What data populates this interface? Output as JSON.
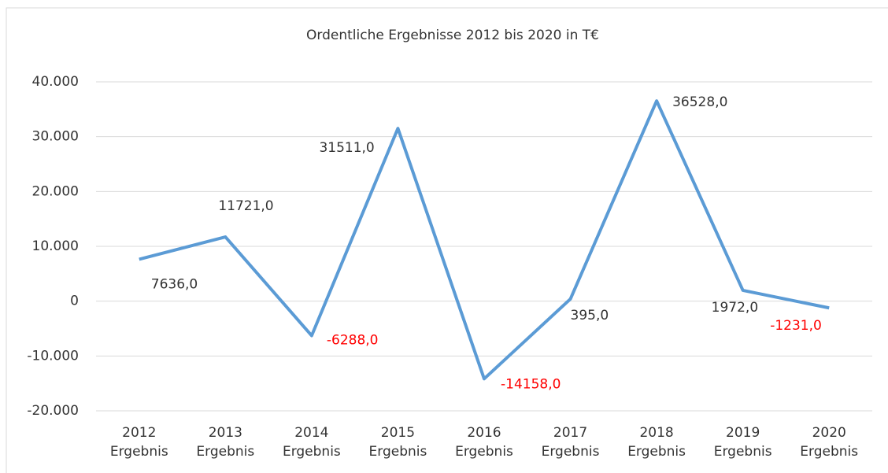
{
  "chart_data": {
    "type": "line",
    "title": "Ordentliche Ergebnisse 2012 bis 2020 in T€",
    "categories": [
      "2012 Ergebnis",
      "2013 Ergebnis",
      "2014 Ergebnis",
      "2015 Ergebnis",
      "2016 Ergebnis",
      "2017 Ergebnis",
      "2018 Ergebnis",
      "2019 Ergebnis",
      "2020 Ergebnis"
    ],
    "series": [
      {
        "name": "Ergebnis",
        "color": "#5b9bd5",
        "values": [
          7636,
          11721,
          -6288,
          31511,
          -14158,
          395,
          36528,
          1972,
          -1231
        ],
        "value_labels": [
          "7636,0",
          "11721,0",
          "-6288,0",
          "31511,0",
          "-14158,0",
          "395,0",
          "36528,0",
          "1972,0",
          "-1231,0"
        ]
      }
    ],
    "negative_label_color": "#ff0000",
    "ylim": [
      -20000,
      40000
    ],
    "yticks": [
      {
        "value": -20000,
        "label": "-20.000"
      },
      {
        "value": -10000,
        "label": "-10.000"
      },
      0,
      {
        "value": 10000,
        "label": "10.000"
      },
      {
        "value": 20000,
        "label": "20.000"
      },
      {
        "value": 30000,
        "label": "30.000"
      },
      {
        "value": 40000,
        "label": "40.000"
      }
    ],
    "grid": true
  }
}
